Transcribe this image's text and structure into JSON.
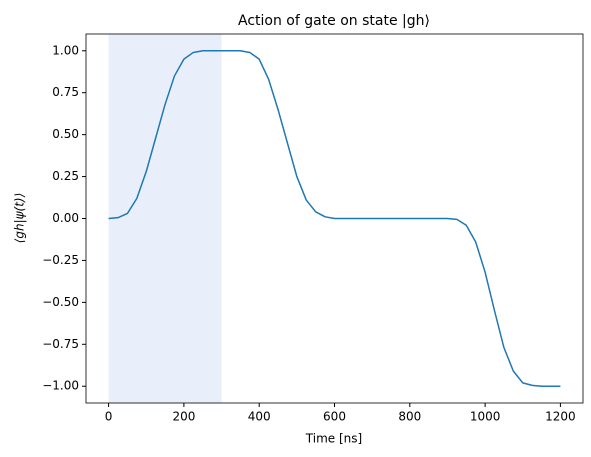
{
  "chart_data": {
    "type": "line",
    "title": "Action of gate on state |gh⟩",
    "x_label": "Time [ns]",
    "y_label": "⟨gh|ψ(t)⟩",
    "x": [
      0,
      25,
      50,
      75,
      100,
      125,
      150,
      175,
      200,
      225,
      250,
      275,
      300,
      325,
      350,
      375,
      400,
      425,
      450,
      475,
      500,
      525,
      550,
      575,
      600,
      650,
      700,
      750,
      800,
      850,
      900,
      925,
      950,
      975,
      1000,
      1025,
      1050,
      1075,
      1100,
      1125,
      1150,
      1175,
      1200
    ],
    "series": [
      {
        "name": "⟨gh|ψ(t)⟩",
        "color": "#1f77b4",
        "values": [
          0,
          0.005,
          0.03,
          0.12,
          0.28,
          0.48,
          0.68,
          0.85,
          0.95,
          0.99,
          1,
          1,
          1,
          1,
          1,
          0.99,
          0.95,
          0.83,
          0.65,
          0.45,
          0.25,
          0.11,
          0.04,
          0.01,
          0,
          0,
          0,
          0,
          0,
          0,
          0,
          -0.005,
          -0.04,
          -0.14,
          -0.32,
          -0.55,
          -0.77,
          -0.91,
          -0.98,
          -0.995,
          -1,
          -1,
          -1
        ]
      }
    ],
    "span": [
      0,
      300
    ],
    "span_color": "#e9effa",
    "xlim": [
      -60,
      1260
    ],
    "xticks": [
      0,
      200,
      400,
      600,
      800,
      1000,
      1200
    ],
    "ylim": [
      -1.1,
      1.1
    ],
    "yticks": [
      {
        "value": -1,
        "label": "−1.00"
      },
      {
        "value": -0.75,
        "label": "−0.75"
      },
      {
        "value": -0.5,
        "label": "−0.50"
      },
      {
        "value": -0.25,
        "label": "−0.25"
      },
      {
        "value": 0,
        "label": "0.00"
      },
      {
        "value": 0.25,
        "label": "0.25"
      },
      {
        "value": 0.5,
        "label": "0.50"
      },
      {
        "value": 0.75,
        "label": "0.75"
      },
      {
        "value": 1,
        "label": "1.00"
      }
    ],
    "grid": false
  }
}
